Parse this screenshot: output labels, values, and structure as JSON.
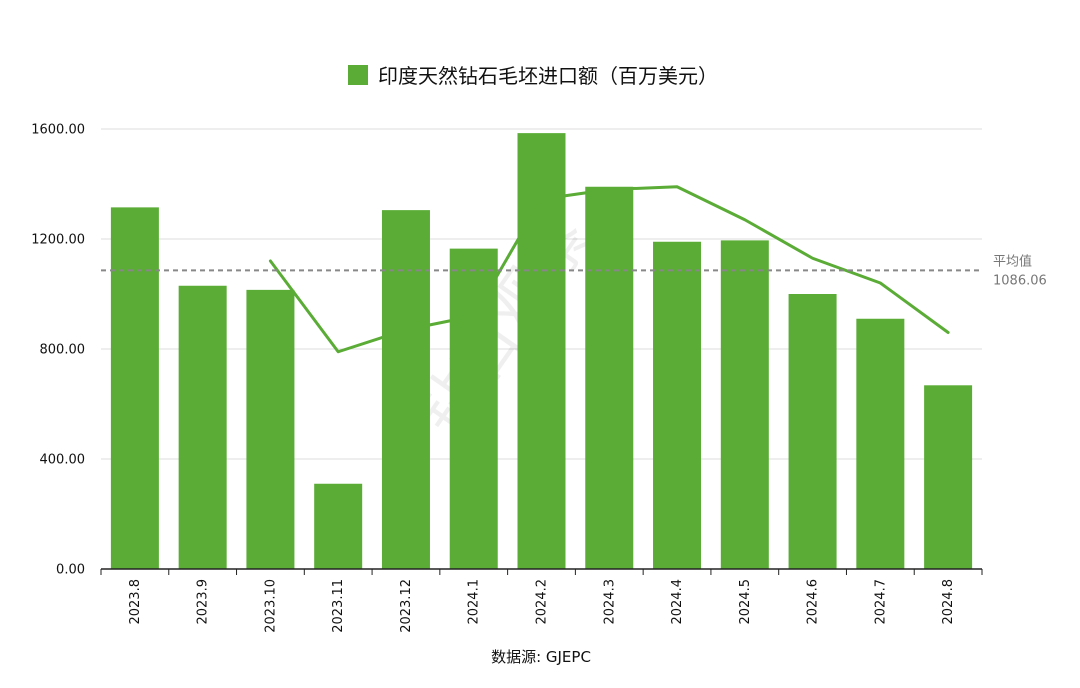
{
  "chart_data": {
    "type": "bar",
    "legend": "印度天然钻石毛坯进口额（百万美元）",
    "categories": [
      "2023.8",
      "2023.9",
      "2023.10",
      "2023.11",
      "2023.12",
      "2024.1",
      "2024.2",
      "2024.3",
      "2024.4",
      "2024.5",
      "2024.6",
      "2024.7",
      "2024.8"
    ],
    "series": [
      {
        "name": "印度天然钻石毛坯进口额（百万美元）",
        "type": "bar",
        "color": "#5aac36",
        "values": [
          1315,
          1030,
          1015,
          310,
          1305,
          1165,
          1585,
          1390,
          1190,
          1195,
          1000,
          910,
          668
        ]
      }
    ],
    "trend_line": {
      "type": "line",
      "color": "#5aac36",
      "values": [
        null,
        null,
        1120,
        790,
        870,
        920,
        1345,
        1380,
        1390,
        1270,
        1130,
        1040,
        860
      ]
    },
    "average": {
      "label": "平均值",
      "value_label": "1086.06",
      "value": 1086.06,
      "style": "dashed",
      "color": "#888888"
    },
    "y_ticks": [
      "0.00",
      "400.00",
      "800.00",
      "1200.00",
      "1600.00"
    ],
    "ylim": [
      0,
      1600
    ],
    "grid": true,
    "legend_position": "top",
    "source": "数据源: GJEPC",
    "watermark": "钻石观察"
  }
}
